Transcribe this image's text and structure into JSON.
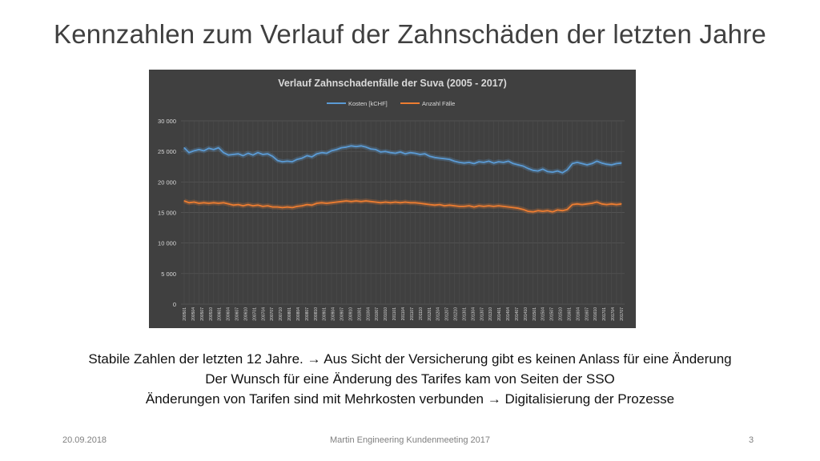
{
  "slide": {
    "title": "Kennzahlen zum Verlauf der Zahnschäden der letzten Jahre",
    "body_lines": [
      "Stabile Zahlen der letzten 12 Jahre. → Aus Sicht der Versicherung gibt es keinen Anlass für eine Änderung",
      "Der Wunsch für eine Änderung des Tarifes kam von Seiten der SSO",
      "Änderungen von Tarifen sind mit Mehrkosten verbunden → Digitalisierung der Prozesse"
    ],
    "footer": {
      "date": "20.09.2018",
      "center": "Martin Engineering Kundenmeeting 2017",
      "page": "3"
    }
  },
  "colors": {
    "chart_background": "#404040",
    "kosten": "#5b9bd5",
    "faelle": "#ed7d31",
    "text_light": "#d9d9d9"
  },
  "chart_data": {
    "type": "line",
    "title": "Verlauf  Zahnschadenfälle der Suva (2005 - 2017)",
    "xlabel": "",
    "ylabel": "",
    "ylim": [
      0,
      30000
    ],
    "yticks": [
      0,
      5000,
      10000,
      15000,
      20000,
      25000,
      30000
    ],
    "ytick_labels": [
      "0",
      "5 000",
      "10 000",
      "15 000",
      "20 000",
      "25 000",
      "30 000"
    ],
    "grid": true,
    "legend": "top-center",
    "x_tick_labels": [
      "200501",
      "200504",
      "200507",
      "200510",
      "200601",
      "200604",
      "200607",
      "200610",
      "200701",
      "200704",
      "200707",
      "200710",
      "200801",
      "200804",
      "200807",
      "200810",
      "200901",
      "200904",
      "200907",
      "200910",
      "201001",
      "201004",
      "201007",
      "201010",
      "201101",
      "201104",
      "201107",
      "201110",
      "201201",
      "201204",
      "201207",
      "201210",
      "201301",
      "201304",
      "201307",
      "201310",
      "201401",
      "201404",
      "201407",
      "201410",
      "201501",
      "201504",
      "201507",
      "201510",
      "201601",
      "201604",
      "201607",
      "201610",
      "201701",
      "201704",
      "201707"
    ],
    "series": [
      {
        "name": "Kosten [kCHF]",
        "color": "#5b9bd5",
        "values": [
          25600,
          24800,
          25100,
          25300,
          25100,
          25500,
          25300,
          25600,
          24800,
          24400,
          24500,
          24600,
          24300,
          24700,
          24400,
          24800,
          24500,
          24600,
          24200,
          23500,
          23300,
          23400,
          23300,
          23700,
          23900,
          24300,
          24100,
          24600,
          24800,
          24700,
          25100,
          25300,
          25600,
          25700,
          25900,
          25800,
          25900,
          25700,
          25400,
          25300,
          24900,
          25000,
          24800,
          24700,
          24900,
          24600,
          24800,
          24700,
          24500,
          24600,
          24200,
          24000,
          23900,
          23800,
          23700,
          23400,
          23200,
          23100,
          23200,
          23000,
          23300,
          23200,
          23400,
          23100,
          23300,
          23200,
          23400,
          23000,
          22800,
          22600,
          22200,
          21900,
          21800,
          22100,
          21700,
          21600,
          21800,
          21500,
          22000,
          23000,
          23200,
          23000,
          22800,
          23000,
          23400,
          23100,
          22900,
          22800,
          23000,
          23100
        ]
      },
      {
        "name": "Anzahl Fälle",
        "color": "#ed7d31",
        "values": [
          16900,
          16600,
          16700,
          16500,
          16600,
          16500,
          16600,
          16500,
          16600,
          16400,
          16200,
          16300,
          16100,
          16300,
          16100,
          16200,
          16000,
          16100,
          15900,
          15900,
          15800,
          15900,
          15800,
          16000,
          16100,
          16300,
          16200,
          16500,
          16600,
          16500,
          16600,
          16700,
          16800,
          16900,
          16800,
          16900,
          16800,
          16900,
          16800,
          16700,
          16600,
          16700,
          16600,
          16700,
          16600,
          16700,
          16600,
          16600,
          16500,
          16400,
          16300,
          16200,
          16300,
          16100,
          16200,
          16100,
          16000,
          16000,
          16100,
          15900,
          16100,
          16000,
          16100,
          16000,
          16100,
          16000,
          15900,
          15800,
          15700,
          15500,
          15200,
          15100,
          15300,
          15200,
          15300,
          15100,
          15400,
          15300,
          15500,
          16300,
          16400,
          16300,
          16400,
          16500,
          16700,
          16400,
          16300,
          16400,
          16300,
          16400
        ]
      }
    ]
  }
}
